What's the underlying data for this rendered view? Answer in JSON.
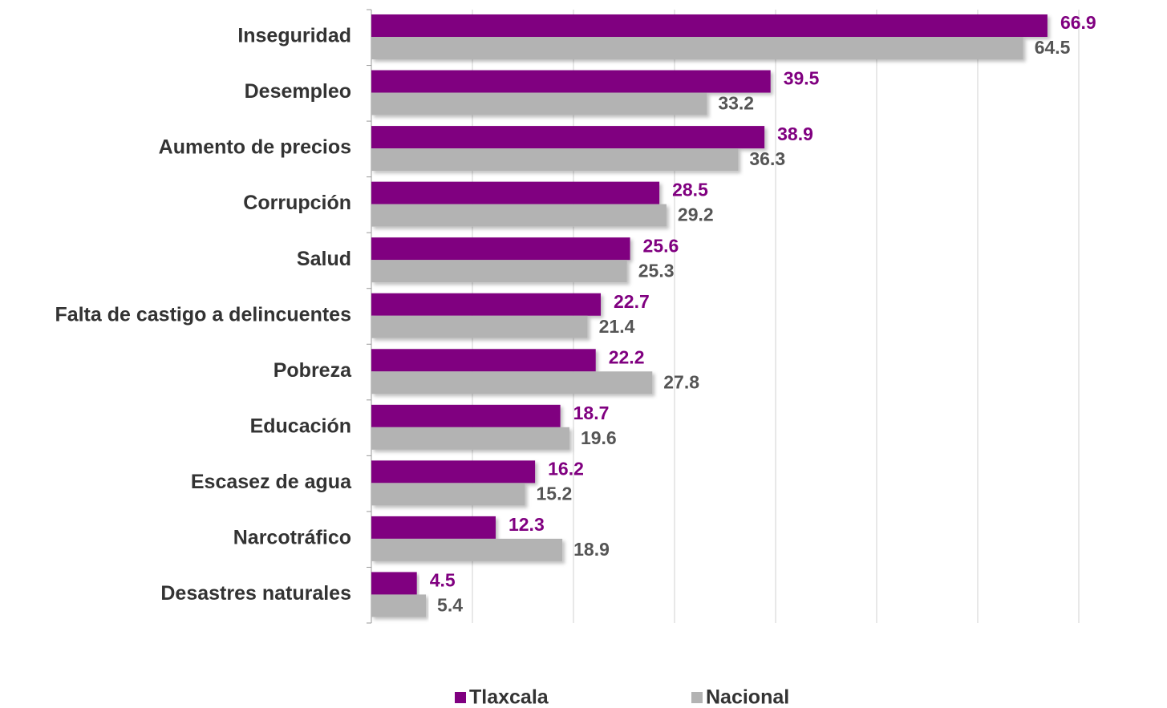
{
  "chart_data": {
    "type": "bar",
    "orientation": "horizontal",
    "categories": [
      "Inseguridad",
      "Desempleo",
      "Aumento de precios",
      "Corrupción",
      "Salud",
      "Falta de castigo a delincuentes",
      "Pobreza",
      "Educación",
      "Escasez de agua",
      "Narcotráfico",
      "Desastres naturales"
    ],
    "series": [
      {
        "name": "Tlaxcala",
        "color": "#800080",
        "values": [
          66.9,
          39.5,
          38.9,
          28.5,
          25.6,
          22.7,
          22.2,
          18.7,
          16.2,
          12.3,
          4.5
        ]
      },
      {
        "name": "Nacional",
        "color": "#b3b3b3",
        "values": [
          64.5,
          33.2,
          36.3,
          29.2,
          25.3,
          21.4,
          27.8,
          19.6,
          15.2,
          18.9,
          5.4
        ]
      }
    ],
    "xlim": [
      0,
      70
    ],
    "xticks": [
      0,
      10,
      20,
      30,
      40,
      50,
      60,
      70
    ],
    "grid": true,
    "legend": "bottom"
  }
}
